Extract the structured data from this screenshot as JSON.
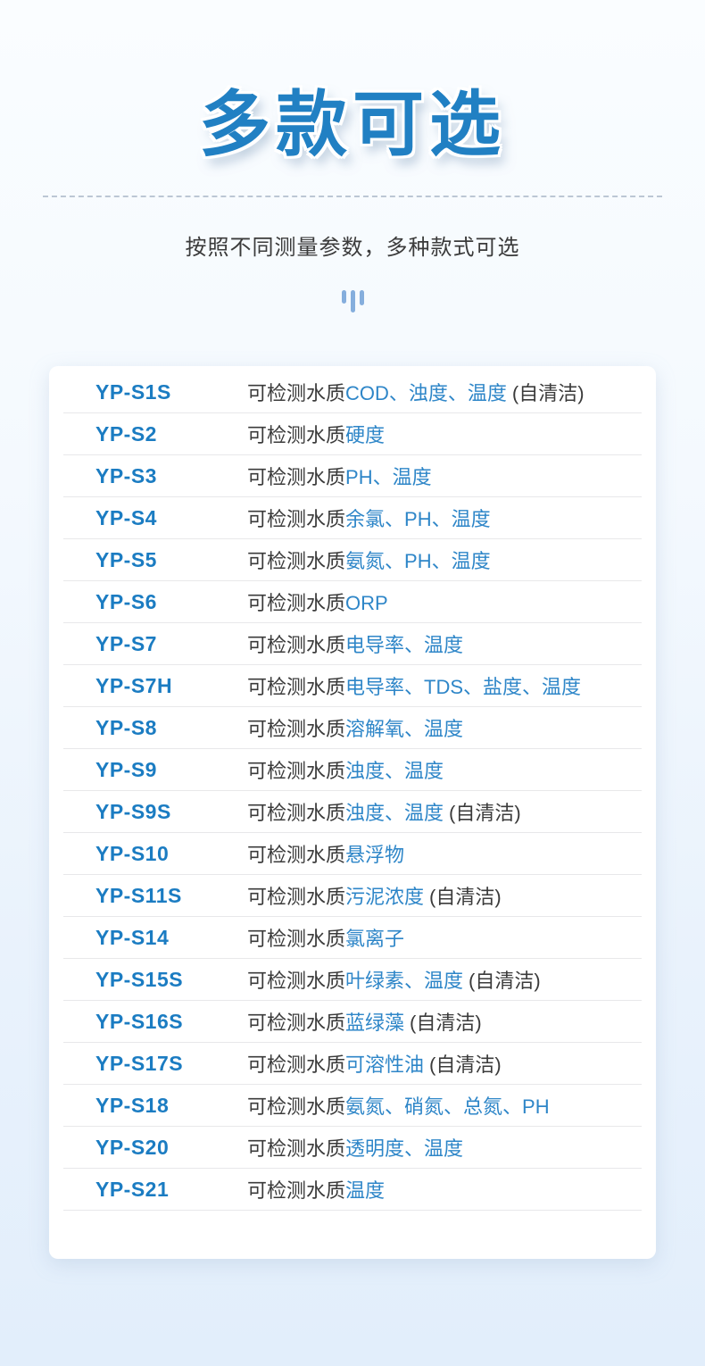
{
  "page": {
    "title": "多款可选",
    "subtitle": "按照不同测量参数，多种款式可选"
  },
  "colors": {
    "title_blue": "#2180c3",
    "model_blue": "#1b7cc2",
    "param_blue": "#2e86c8",
    "text_dark": "#3b3b3b",
    "divider": "#e8e8ea",
    "background_top": "#fafdff",
    "background_bottom": "#e2eefb",
    "card_background": "#ffffff",
    "bars_icon": "#85aedd",
    "dashed_line": "#a9b6c6"
  },
  "icons": {
    "bars_icon": "three-vertical-bars"
  },
  "table": {
    "detect_prefix": "可检测水质",
    "rows": [
      {
        "model": "YP-S1S",
        "params": "COD、浊度、温度",
        "suffix": "(自清洁)"
      },
      {
        "model": "YP-S2",
        "params": "硬度",
        "suffix": ""
      },
      {
        "model": "YP-S3",
        "params": "PH、温度",
        "suffix": ""
      },
      {
        "model": "YP-S4",
        "params": "余氯、PH、温度",
        "suffix": ""
      },
      {
        "model": "YP-S5",
        "params": "氨氮、PH、温度",
        "suffix": ""
      },
      {
        "model": "YP-S6",
        "params": "ORP",
        "suffix": ""
      },
      {
        "model": "YP-S7",
        "params": "电导率、温度",
        "suffix": ""
      },
      {
        "model": "YP-S7H",
        "params": "电导率、TDS、盐度、温度",
        "suffix": ""
      },
      {
        "model": "YP-S8",
        "params": "溶解氧、温度",
        "suffix": ""
      },
      {
        "model": "YP-S9",
        "params": "浊度、温度",
        "suffix": ""
      },
      {
        "model": "YP-S9S",
        "params": "浊度、温度",
        "suffix": "(自清洁)"
      },
      {
        "model": "YP-S10",
        "params": "悬浮物",
        "suffix": ""
      },
      {
        "model": "YP-S11S",
        "params": "污泥浓度",
        "suffix": "(自清洁)"
      },
      {
        "model": "YP-S14",
        "params": "氯离子",
        "suffix": ""
      },
      {
        "model": "YP-S15S",
        "params": "叶绿素、温度",
        "suffix": "(自清洁)"
      },
      {
        "model": "YP-S16S",
        "params": "蓝绿藻",
        "suffix": "(自清洁)"
      },
      {
        "model": "YP-S17S",
        "params": "可溶性油",
        "suffix": "(自清洁)"
      },
      {
        "model": "YP-S18",
        "params": "氨氮、硝氮、总氮、PH",
        "suffix": ""
      },
      {
        "model": "YP-S20",
        "params": "透明度、温度",
        "suffix": ""
      },
      {
        "model": "YP-S21",
        "params": "温度",
        "suffix": ""
      }
    ]
  }
}
